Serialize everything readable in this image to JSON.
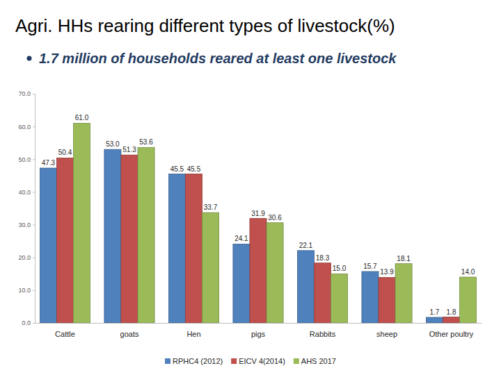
{
  "chart_data": {
    "type": "bar",
    "title": "Agri. HHs rearing different types of livestock(%)",
    "subtitle": "1.7 million of households reared at least one livestock",
    "categories": [
      "Cattle",
      "goats",
      "Hen",
      "pigs",
      "Rabbits",
      "sheep",
      "Other poultry"
    ],
    "series": [
      {
        "name": "RPHC4 (2012)",
        "color": "#4f81bd",
        "values": [
          47.3,
          53.0,
          45.5,
          24.1,
          22.1,
          15.7,
          1.7
        ],
        "value_labels": [
          "47.3",
          "53.0",
          "45.5",
          "24.1",
          "22.1",
          "15.7",
          "1.7"
        ]
      },
      {
        "name": "EICV 4(2014)",
        "color": "#c0504d",
        "values": [
          50.4,
          51.3,
          45.5,
          31.9,
          18.3,
          13.9,
          1.8
        ],
        "value_labels": [
          "50.4",
          "51.3",
          "45.5",
          "31.9",
          "18.3",
          "13.9",
          "1.8"
        ]
      },
      {
        "name": "AHS 2017",
        "color": "#9bbb59",
        "values": [
          61.0,
          53.6,
          33.7,
          30.6,
          15.0,
          18.1,
          14.0
        ],
        "value_labels": [
          "61.0",
          "53.6",
          "33.7",
          "30.6",
          "15.0",
          "18.1",
          "14.0"
        ]
      }
    ],
    "ylim": [
      0,
      70
    ],
    "yticks": [
      {
        "value": 0,
        "label": "0.0"
      },
      {
        "value": 10,
        "label": "10.0"
      },
      {
        "value": 20,
        "label": "20.0"
      },
      {
        "value": 30,
        "label": "30.0"
      },
      {
        "value": 40,
        "label": "40.0"
      },
      {
        "value": 50,
        "label": "50.0"
      },
      {
        "value": 60,
        "label": "60.0"
      },
      {
        "value": 70,
        "label": "70.0"
      }
    ],
    "grid": false,
    "legend": "bottom",
    "data_labels": true
  }
}
